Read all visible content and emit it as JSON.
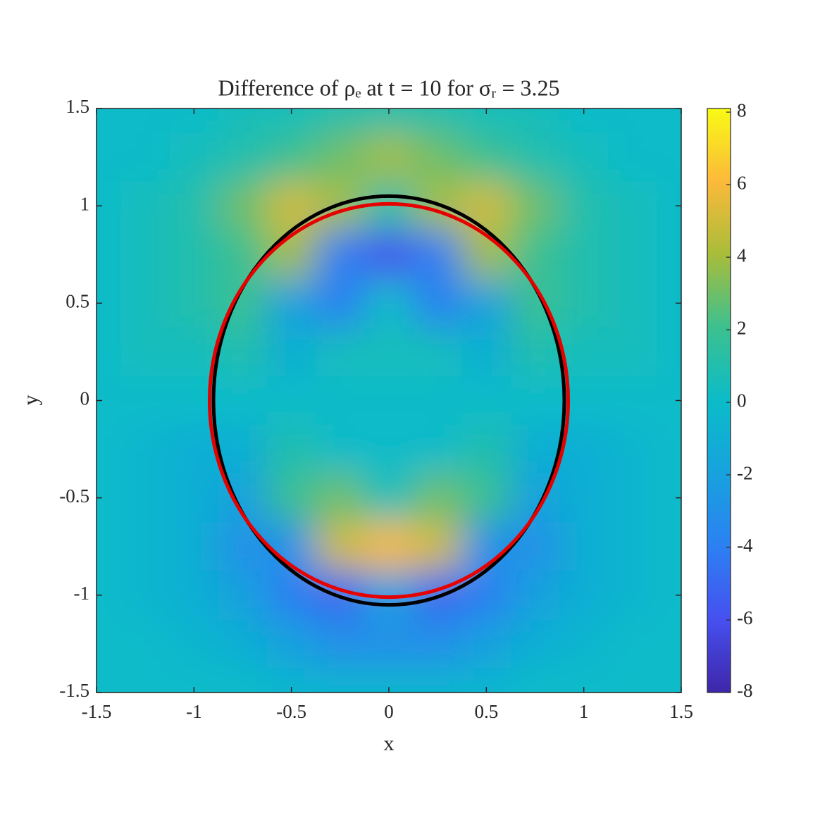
{
  "chart_data": {
    "type": "heatmap",
    "title": "Difference of ρₑ at t = 10 for σᵣ = 3.25",
    "xlabel": "x",
    "ylabel": "y",
    "x": [
      -1.5,
      -1.25,
      -1,
      -0.75,
      -0.5,
      -0.25,
      0,
      0.25,
      0.5,
      0.75,
      1,
      1.25,
      1.5
    ],
    "y": [
      1.5,
      1.25,
      1,
      0.75,
      0.5,
      0.25,
      0,
      -0.25,
      -0.5,
      -0.75,
      -1,
      -1.25,
      -1.5
    ],
    "z": [
      [
        0,
        0,
        0,
        0.5,
        0.5,
        1,
        1,
        1,
        0.5,
        0.5,
        0,
        0,
        0
      ],
      [
        0,
        0,
        0.5,
        1,
        2,
        3,
        4,
        3,
        2,
        1,
        0.5,
        0,
        0
      ],
      [
        0,
        0.5,
        1,
        3,
        5,
        4,
        1,
        4,
        5,
        3,
        1,
        0.5,
        0
      ],
      [
        0,
        0.5,
        1,
        2,
        4,
        -4,
        -6,
        -4,
        4,
        2,
        1,
        0.5,
        0
      ],
      [
        0,
        0.5,
        1,
        2,
        -2,
        -4,
        0,
        -4,
        -2,
        2,
        1,
        0.5,
        0
      ],
      [
        0,
        0.5,
        0.5,
        1,
        -1,
        0.5,
        0.5,
        0.5,
        -1,
        1,
        0.5,
        0.5,
        0
      ],
      [
        0,
        0,
        0,
        0,
        0,
        0,
        0,
        0,
        0,
        0,
        0,
        0,
        0
      ],
      [
        0,
        -0.5,
        -1,
        -1,
        1,
        0,
        0,
        0,
        1,
        -1,
        -1,
        -0.5,
        0
      ],
      [
        0,
        -0.5,
        -1,
        -2,
        2,
        3,
        0.5,
        3,
        2,
        -2,
        -1,
        -0.5,
        0
      ],
      [
        0,
        -0.5,
        -1,
        -3,
        -3,
        5,
        6,
        5,
        -3,
        -3,
        -1,
        -0.5,
        0
      ],
      [
        0,
        -0.5,
        -1,
        -2,
        -4,
        -5,
        -2,
        -5,
        -4,
        -2,
        -1,
        -0.5,
        0
      ],
      [
        0,
        0,
        -0.5,
        -1,
        -2,
        -3,
        -3,
        -3,
        -2,
        -1,
        -0.5,
        0,
        0
      ],
      [
        0,
        0,
        0,
        0,
        -0.5,
        -0.5,
        -0.5,
        -0.5,
        -0.5,
        0,
        0,
        0,
        0
      ]
    ],
    "ellipses": [
      {
        "color": "#000000",
        "cx": 0,
        "cy": 0,
        "rx": 0.9,
        "ry": 1.05
      },
      {
        "color": "#e60000",
        "cx": 0,
        "cy": 0,
        "rx": 0.92,
        "ry": 1.01
      }
    ],
    "xlim": [
      -1.5,
      1.5
    ],
    "ylim": [
      -1.5,
      1.5
    ],
    "xticks": [
      -1.5,
      -1,
      -0.5,
      0,
      0.5,
      1,
      1.5
    ],
    "yticks": [
      -1.5,
      -1,
      -0.5,
      0,
      0.5,
      1,
      1.5
    ],
    "clim": [
      -8,
      8.1
    ],
    "cticks": [
      -8,
      -6,
      -4,
      -2,
      0,
      2,
      4,
      6,
      8
    ]
  }
}
